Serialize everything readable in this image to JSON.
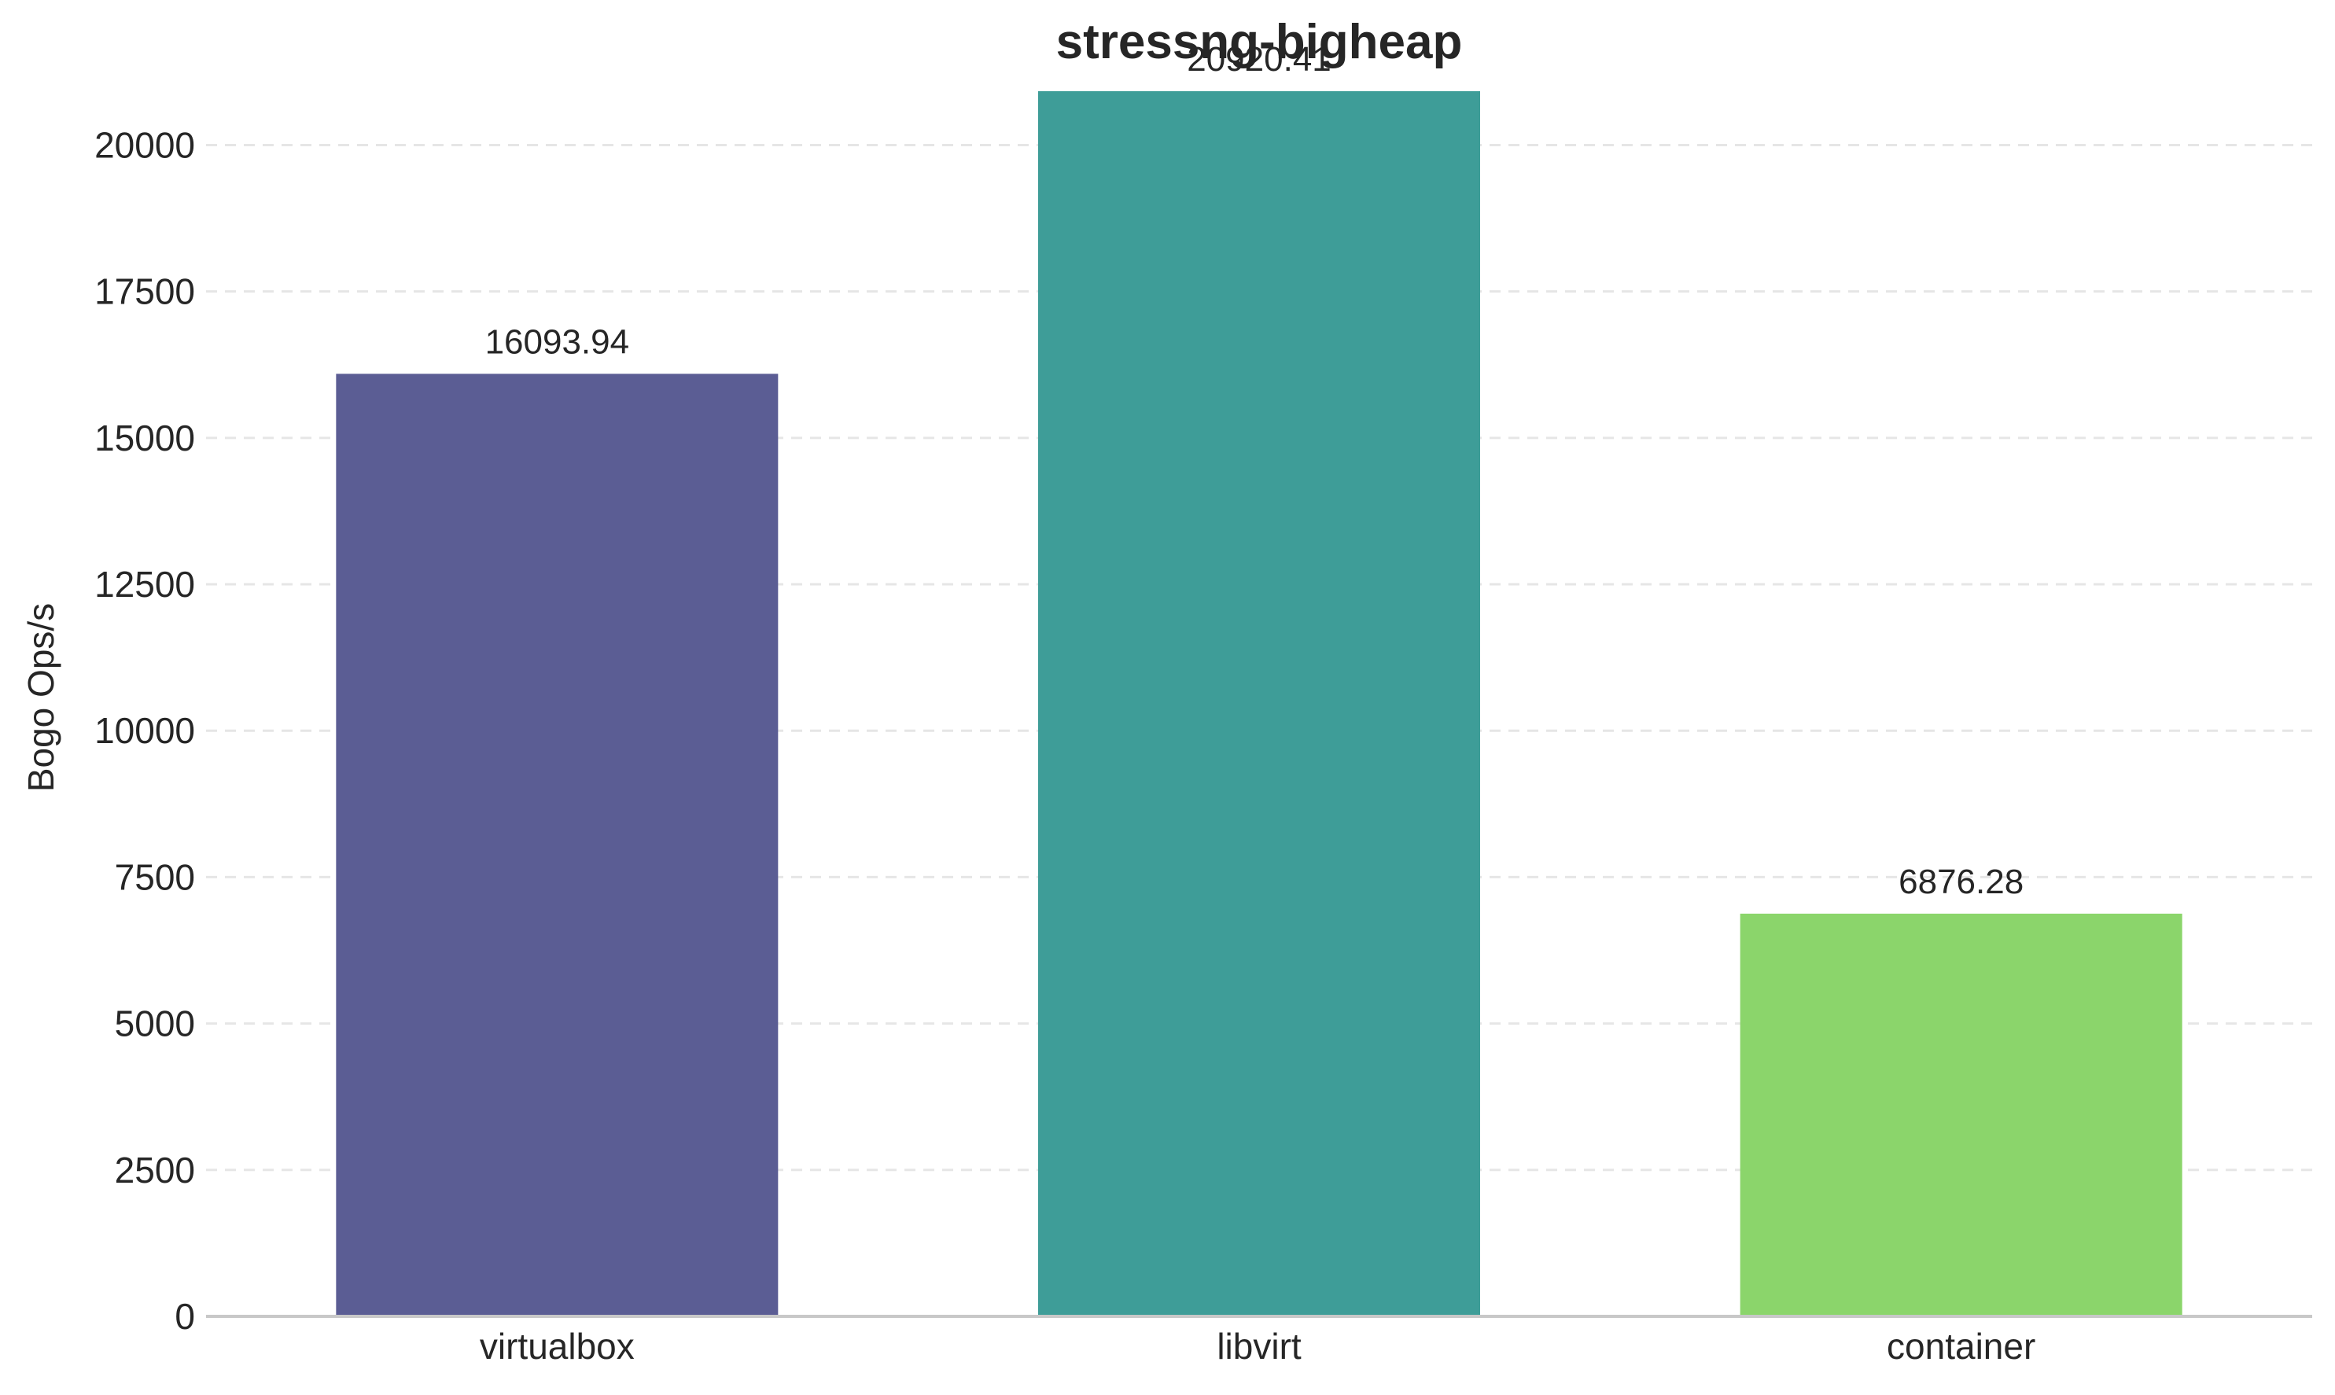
{
  "chart_data": {
    "type": "bar",
    "title": "stressng-bigheap",
    "xlabel": "",
    "ylabel": "Bogo Ops/s",
    "categories": [
      "virtualbox",
      "libvirt",
      "container"
    ],
    "values": [
      16093.94,
      20920.41,
      6876.28
    ],
    "value_labels": [
      "16093.94",
      "20920.41",
      "6876.28"
    ],
    "colors": [
      "#5b5d94",
      "#3e9d98",
      "#8bd56b"
    ],
    "ylim": [
      0,
      21000
    ],
    "yticks": [
      0,
      2500,
      5000,
      7500,
      10000,
      12500,
      15000,
      17500,
      20000
    ],
    "ytick_labels": [
      "0",
      "2500",
      "5000",
      "7500",
      "10000",
      "12500",
      "15000",
      "17500",
      "20000"
    ],
    "grid": true,
    "legend": "none"
  }
}
